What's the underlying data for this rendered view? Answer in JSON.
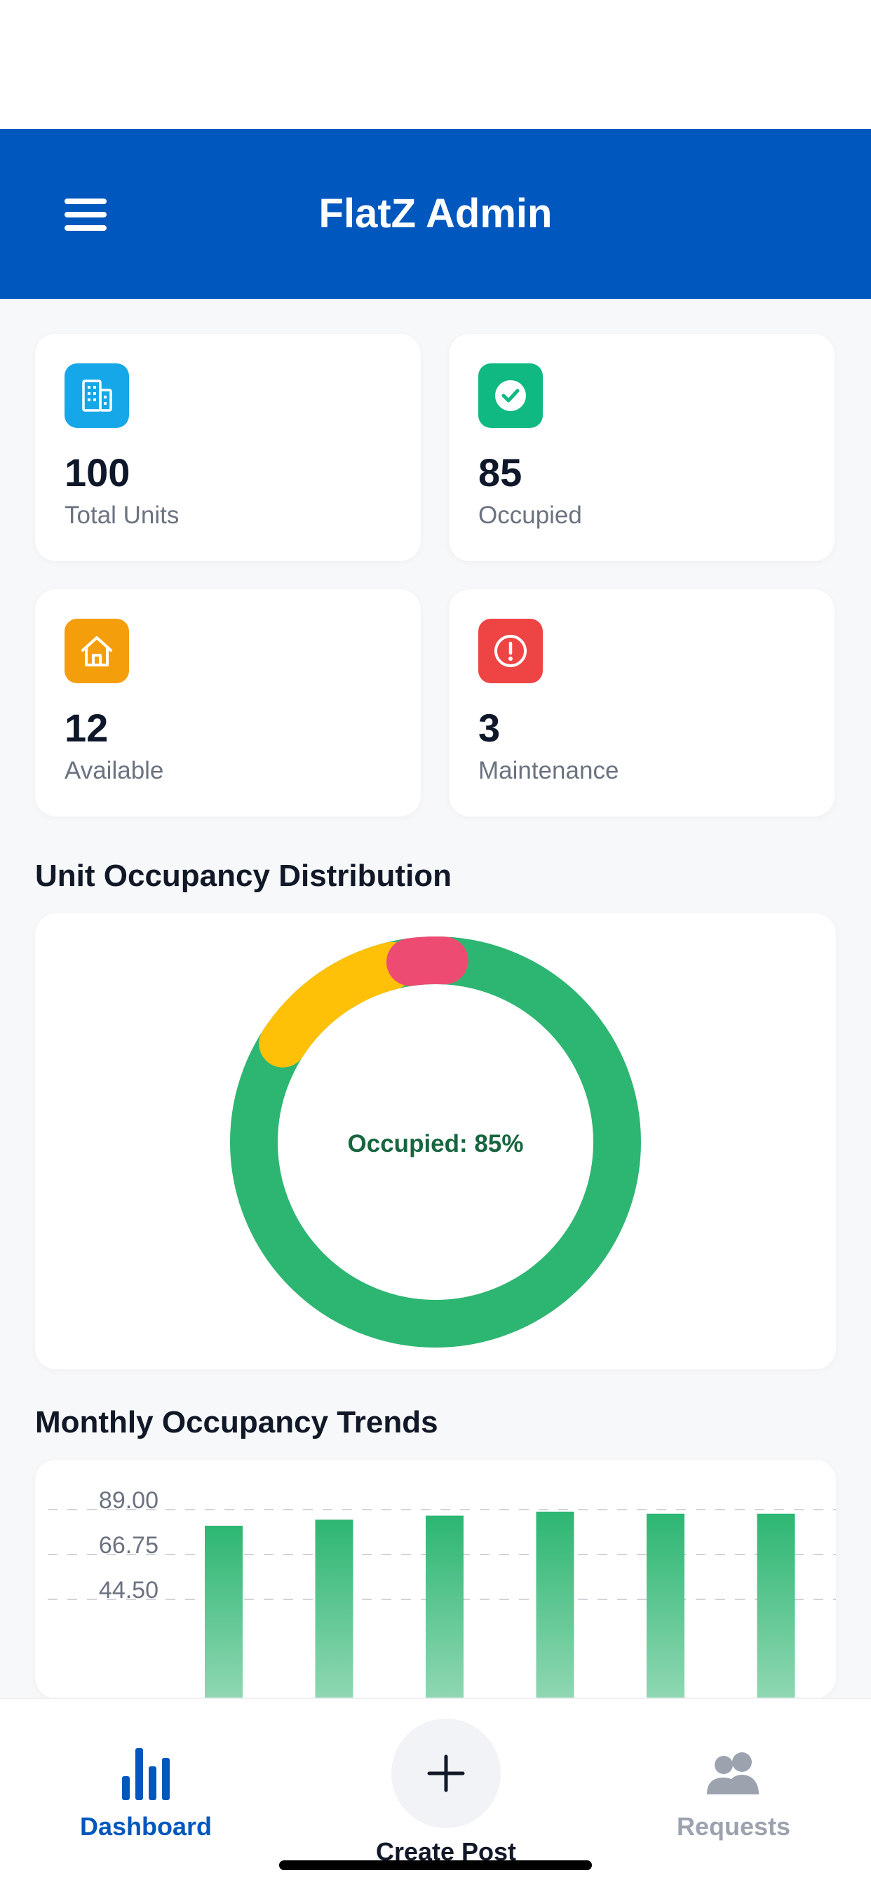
{
  "header": {
    "title": "FlatZ Admin"
  },
  "stats": [
    {
      "value": "100",
      "label": "Total Units",
      "icon": "building-icon",
      "color": "#16a7e8"
    },
    {
      "value": "85",
      "label": "Occupied",
      "icon": "check-circle-icon",
      "color": "#10b981"
    },
    {
      "value": "12",
      "label": "Available",
      "icon": "home-icon",
      "color": "#f59e0b"
    },
    {
      "value": "3",
      "label": "Maintenance",
      "icon": "alert-circle-icon",
      "color": "#ef4444"
    }
  ],
  "distribution": {
    "title": "Unit Occupancy Distribution",
    "center_label": "Occupied: 85%"
  },
  "trends": {
    "title": "Monthly Occupancy Trends"
  },
  "nav": {
    "dashboard": "Dashboard",
    "create_post": "Create Post",
    "requests": "Requests"
  },
  "colors": {
    "primary": "#0057bd",
    "occupied": "#2db672",
    "available": "#ffc107",
    "maintenance": "#ee4b72",
    "inactive": "#9ca3af"
  },
  "chart_data": [
    {
      "type": "pie",
      "title": "Unit Occupancy Distribution",
      "labels": [
        "Occupied",
        "Available",
        "Maintenance"
      ],
      "values": [
        85,
        12,
        3
      ],
      "center_text": "Occupied: 85%"
    },
    {
      "type": "bar",
      "title": "Monthly Occupancy Trends",
      "ylim": [
        44.5,
        89
      ],
      "yticks": [
        "89.00",
        "66.75",
        "44.50"
      ],
      "values": [
        81,
        84,
        86,
        88,
        87,
        87
      ]
    }
  ]
}
